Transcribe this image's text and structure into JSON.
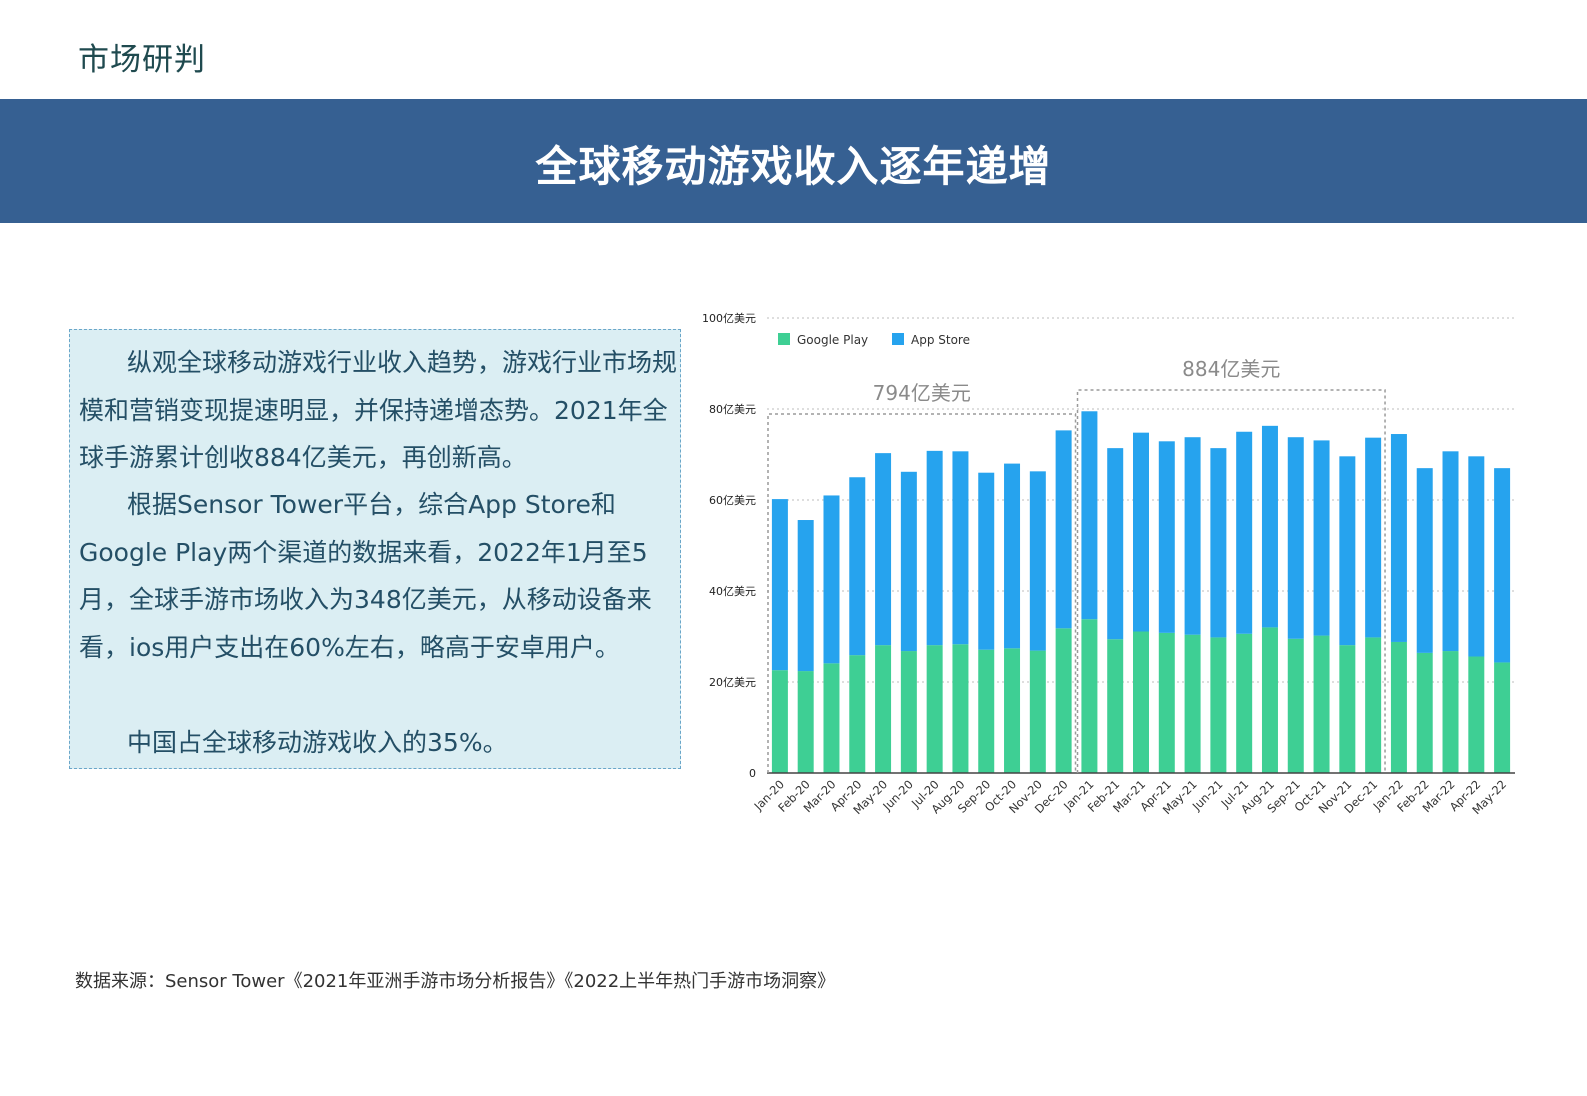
{
  "header": {
    "section_label": "市场研判",
    "banner_title": "全球移动游戏收入逐年递增"
  },
  "body_text": {
    "paragraph1": "纵观全球移动游戏行业收入趋势，游戏行业市场规模和营销变现提速明显，并保持递增态势。2021年全球手游累计创收884亿美元，再创新高。",
    "paragraph2": "根据Sensor Tower平台，综合App Store和Google Play两个渠道的数据来看，2022年1月至5月，全球手游市场收入为348亿美元，从移动设备来看，ios用户支出在60%左右，略高于安卓用户。",
    "paragraph3": "中国占全球移动游戏收入的35%。"
  },
  "footer": {
    "source": "数据来源：Sensor Tower《2021年亚洲手游市场分析报告》《2022上半年热门手游市场洞察》"
  },
  "colors": {
    "banner": "#366092",
    "google_play": "#3ecf94",
    "app_store": "#26a3ee"
  },
  "chart_data": {
    "type": "bar",
    "stacked": true,
    "categories": [
      "Jan-20",
      "Feb-20",
      "Mar-20",
      "Apr-20",
      "May-20",
      "Jun-20",
      "Jul-20",
      "Aug-20",
      "Sep-20",
      "Oct-20",
      "Nov-20",
      "Dec-20",
      "Jan-21",
      "Feb-21",
      "Mar-21",
      "Apr-21",
      "May-21",
      "Jun-21",
      "Jul-21",
      "Aug-21",
      "Sep-21",
      "Oct-21",
      "Nov-21",
      "Dec-21",
      "Jan-22",
      "Feb-22",
      "Mar-22",
      "Apr-22",
      "May-22"
    ],
    "series": [
      {
        "name": "Google Play",
        "color": "#3ecf94",
        "values": [
          22.6,
          22.4,
          24.1,
          25.9,
          28.1,
          26.8,
          28.1,
          28.3,
          27.1,
          27.4,
          26.9,
          31.8,
          33.8,
          29.4,
          31.1,
          30.8,
          30.4,
          29.8,
          30.6,
          32.0,
          29.5,
          30.2,
          28.1,
          29.8,
          28.8,
          26.4,
          26.8,
          25.6,
          24.3
        ]
      },
      {
        "name": "App Store",
        "color": "#26a3ee",
        "values": [
          37.6,
          33.2,
          36.9,
          39.1,
          42.2,
          39.4,
          42.7,
          42.4,
          38.9,
          40.6,
          39.4,
          43.5,
          45.7,
          42.0,
          43.7,
          42.1,
          43.4,
          41.6,
          44.4,
          44.3,
          44.3,
          42.9,
          41.5,
          43.9,
          45.7,
          40.6,
          43.9,
          44.0,
          42.7
        ]
      }
    ],
    "y_tick_labels": [
      "0",
      "20亿美元",
      "40亿美元",
      "60亿美元",
      "80亿美元",
      "100亿美元"
    ],
    "y_ticks": [
      0,
      20,
      40,
      60,
      80,
      100
    ],
    "ylim": [
      0,
      100
    ],
    "grid": true,
    "legend_position": "top-left",
    "annotations": [
      {
        "text": "794亿美元",
        "range": [
          "Jan-20",
          "Dec-20"
        ]
      },
      {
        "text": "884亿美元",
        "range": [
          "Jan-21",
          "Dec-21"
        ]
      }
    ]
  }
}
